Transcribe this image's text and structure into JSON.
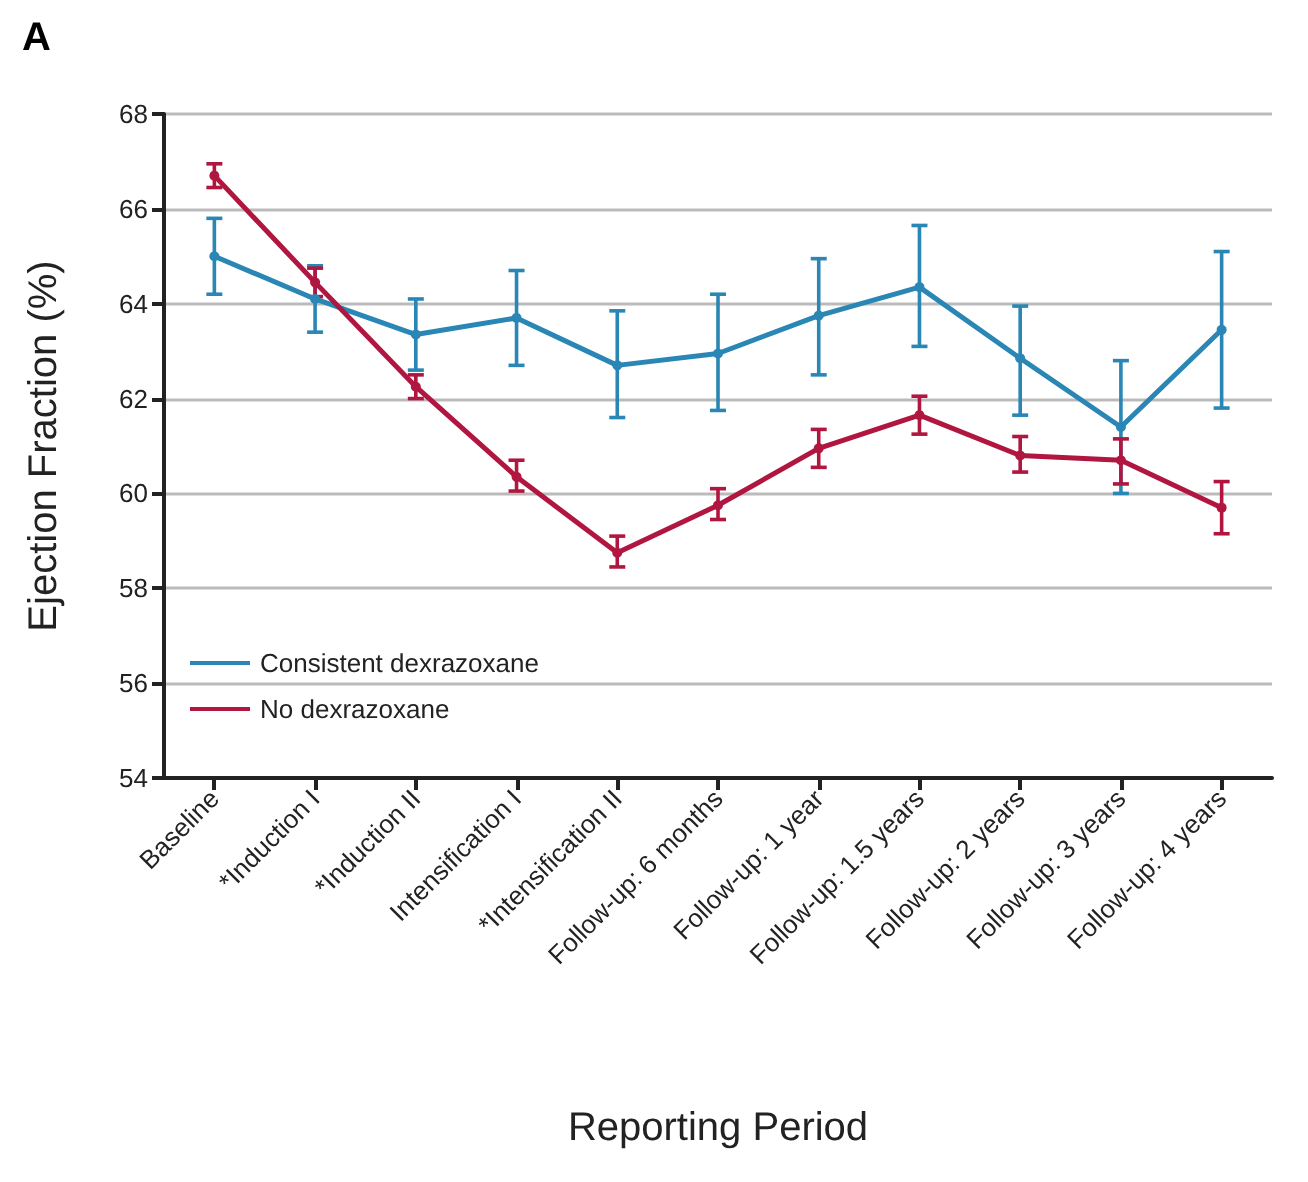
{
  "chart_data": {
    "type": "line",
    "title": "A",
    "xlabel": "Reporting Period",
    "ylabel": "Ejection Fraction (%)",
    "categories": [
      "Baseline",
      "*Induction I",
      "*Induction II",
      "Intensification I",
      "*Intensification II",
      "Follow-up: 6 months",
      "Follow-up: 1 year",
      "Follow-up: 1.5 years",
      "Follow-up: 2 years",
      "Follow-up: 3 years",
      "Follow-up: 4 years"
    ],
    "series": [
      {
        "name": "Consistent dexrazoxane",
        "color": "#2a86b4",
        "values": [
          65.0,
          64.1,
          63.35,
          63.7,
          62.7,
          62.95,
          63.75,
          64.35,
          62.85,
          61.4,
          63.45
        ],
        "errors": [
          [
            64.2,
            65.8
          ],
          [
            63.4,
            64.8
          ],
          [
            62.6,
            64.1
          ],
          [
            62.7,
            64.7
          ],
          [
            61.6,
            63.85
          ],
          [
            61.75,
            64.2
          ],
          [
            62.5,
            64.95
          ],
          [
            63.1,
            65.65
          ],
          [
            61.65,
            63.95
          ],
          [
            60.0,
            62.8
          ],
          [
            61.8,
            65.1
          ]
        ]
      },
      {
        "name": "No dexrazoxane",
        "color": "#b0163f",
        "values": [
          66.7,
          64.45,
          62.25,
          60.35,
          58.75,
          59.75,
          60.95,
          61.65,
          60.8,
          60.7,
          59.7
        ],
        "errors": [
          [
            66.45,
            66.95
          ],
          [
            64.15,
            64.75
          ],
          [
            62.0,
            62.5
          ],
          [
            60.05,
            60.7
          ],
          [
            58.45,
            59.1
          ],
          [
            59.45,
            60.1
          ],
          [
            60.55,
            61.35
          ],
          [
            61.25,
            62.05
          ],
          [
            60.45,
            61.2
          ],
          [
            60.2,
            61.15
          ],
          [
            59.15,
            60.25
          ]
        ]
      }
    ],
    "ylim": [
      54,
      68
    ],
    "yticks": [
      54,
      56,
      58,
      60,
      62,
      64,
      66,
      68
    ],
    "grid": "y",
    "legend": "bottom left",
    "marker": "circle",
    "line_style": "solid"
  }
}
